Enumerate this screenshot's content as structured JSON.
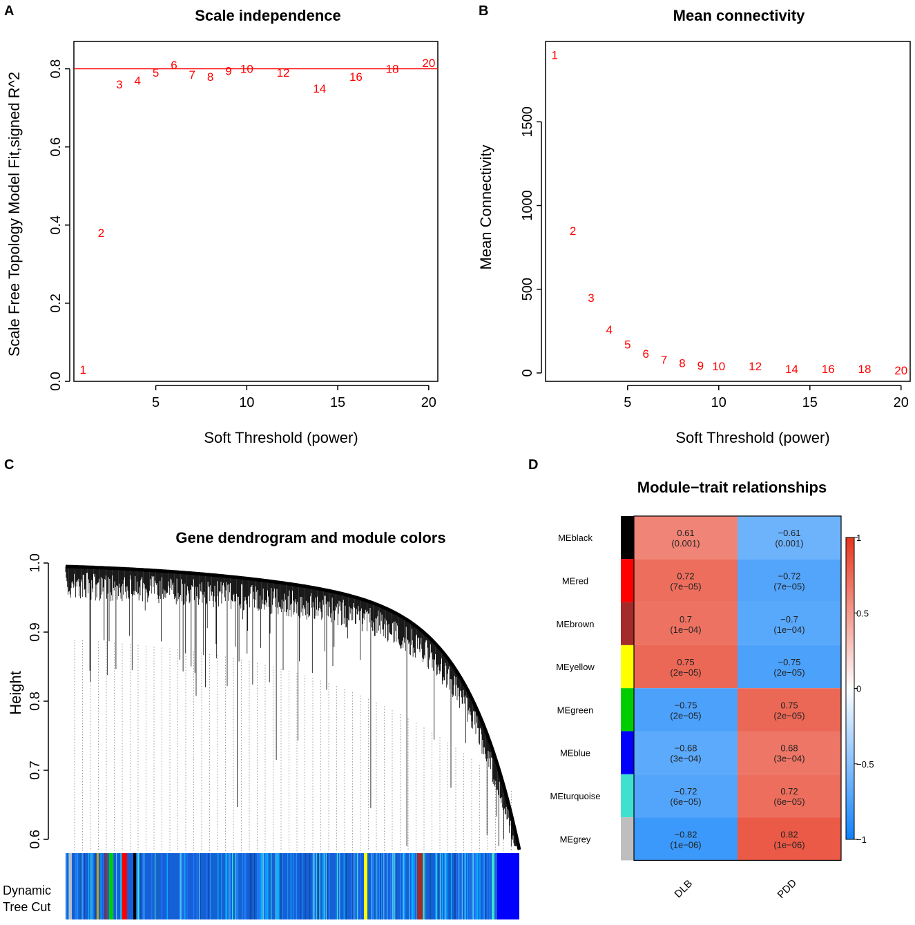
{
  "panels": {
    "a": "A",
    "b": "B",
    "c": "C",
    "d": "D"
  },
  "chart_data": [
    {
      "type": "scatter",
      "title": "Scale independence",
      "xlabel": "Soft Threshold (power)",
      "ylabel": "Scale Free Topology Model Fit,signed R^2",
      "xlim": [
        0.5,
        20.5
      ],
      "ylim": [
        0,
        0.87
      ],
      "xticks": [
        5,
        10,
        15,
        20
      ],
      "yticks": [
        "0.0",
        "0.2",
        "0.4",
        "0.6",
        "0.8"
      ],
      "threshold_line": 0.8,
      "color": "#ff0000",
      "points": [
        {
          "label": "1",
          "x": 1,
          "y": 0.03
        },
        {
          "label": "2",
          "x": 2,
          "y": 0.38
        },
        {
          "label": "3",
          "x": 3,
          "y": 0.76
        },
        {
          "label": "4",
          "x": 4,
          "y": 0.77
        },
        {
          "label": "5",
          "x": 5,
          "y": 0.79
        },
        {
          "label": "6",
          "x": 6,
          "y": 0.81
        },
        {
          "label": "7",
          "x": 7,
          "y": 0.785
        },
        {
          "label": "8",
          "x": 8,
          "y": 0.78
        },
        {
          "label": "9",
          "x": 9,
          "y": 0.795
        },
        {
          "label": "10",
          "x": 10,
          "y": 0.8
        },
        {
          "label": "12",
          "x": 12,
          "y": 0.79
        },
        {
          "label": "14",
          "x": 14,
          "y": 0.75
        },
        {
          "label": "16",
          "x": 16,
          "y": 0.78
        },
        {
          "label": "18",
          "x": 18,
          "y": 0.8
        },
        {
          "label": "20",
          "x": 20,
          "y": 0.815
        }
      ]
    },
    {
      "type": "scatter",
      "title": "Mean connectivity",
      "xlabel": "Soft Threshold (power)",
      "ylabel": "Mean Connectivity",
      "xlim": [
        0.5,
        20.5
      ],
      "ylim": [
        -50,
        1980
      ],
      "xticks": [
        5,
        10,
        15,
        20
      ],
      "yticks": [
        "0",
        "500",
        "1000",
        "1500"
      ],
      "color": "#ff0000",
      "points": [
        {
          "label": "1",
          "x": 1,
          "y": 1900
        },
        {
          "label": "2",
          "x": 2,
          "y": 850
        },
        {
          "label": "3",
          "x": 3,
          "y": 450
        },
        {
          "label": "4",
          "x": 4,
          "y": 260
        },
        {
          "label": "5",
          "x": 5,
          "y": 170
        },
        {
          "label": "6",
          "x": 6,
          "y": 115
        },
        {
          "label": "7",
          "x": 7,
          "y": 80
        },
        {
          "label": "8",
          "x": 8,
          "y": 60
        },
        {
          "label": "9",
          "x": 9,
          "y": 45
        },
        {
          "label": "10",
          "x": 10,
          "y": 40
        },
        {
          "label": "12",
          "x": 12,
          "y": 40
        },
        {
          "label": "14",
          "x": 14,
          "y": 25
        },
        {
          "label": "16",
          "x": 16,
          "y": 25
        },
        {
          "label": "18",
          "x": 18,
          "y": 25
        },
        {
          "label": "20",
          "x": 20,
          "y": 15
        }
      ]
    },
    {
      "type": "dendrogram",
      "title": "Gene dendrogram and module colors",
      "ylabel": "Height",
      "ylim": [
        0.585,
        1.0
      ],
      "yticks": [
        "0.6",
        "0.7",
        "0.8",
        "0.9",
        "1.0"
      ],
      "color_bar_label": [
        "Dynamic",
        "Tree Cut"
      ]
    },
    {
      "type": "heatmap",
      "title": "Module−trait relationships",
      "columns": [
        "DLB",
        "PDD"
      ],
      "rows": [
        {
          "name": "MEblack",
          "color": "#000000",
          "values": [
            "0.61",
            "−0.61"
          ],
          "pvalues": [
            "(0.001)",
            "(0.001)"
          ],
          "v": [
            0.61,
            -0.61
          ]
        },
        {
          "name": "MEred",
          "color": "#ff0000",
          "values": [
            "0.72",
            "−0.72"
          ],
          "pvalues": [
            "(7e−05)",
            "(7e−05)"
          ],
          "v": [
            0.72,
            -0.72
          ]
        },
        {
          "name": "MEbrown",
          "color": "#a52a2a",
          "values": [
            "0.7",
            "−0.7"
          ],
          "pvalues": [
            "(1e−04)",
            "(1e−04)"
          ],
          "v": [
            0.7,
            -0.7
          ]
        },
        {
          "name": "MEyellow",
          "color": "#ffff00",
          "values": [
            "0.75",
            "−0.75"
          ],
          "pvalues": [
            "(2e−05)",
            "(2e−05)"
          ],
          "v": [
            0.75,
            -0.75
          ]
        },
        {
          "name": "MEgreen",
          "color": "#00cd00",
          "values": [
            "−0.75",
            "0.75"
          ],
          "pvalues": [
            "(2e−05)",
            "(2e−05)"
          ],
          "v": [
            -0.75,
            0.75
          ]
        },
        {
          "name": "MEblue",
          "color": "#0000ff",
          "values": [
            "−0.68",
            "0.68"
          ],
          "pvalues": [
            "(3e−04)",
            "(3e−04)"
          ],
          "v": [
            -0.68,
            0.68
          ]
        },
        {
          "name": "MEturquoise",
          "color": "#40e0d0",
          "values": [
            "−0.72",
            "0.72"
          ],
          "pvalues": [
            "(6e−05)",
            "(6e−05)"
          ],
          "v": [
            -0.72,
            0.72
          ]
        },
        {
          "name": "MEgrey",
          "color": "#bebebe",
          "values": [
            "−0.82",
            "0.82"
          ],
          "pvalues": [
            "(1e−06)",
            "(1e−06)"
          ],
          "v": [
            -0.82,
            0.82
          ]
        }
      ],
      "legend_ticks": [
        "1",
        "0.5",
        "0",
        "−0.5",
        "−1"
      ]
    }
  ]
}
